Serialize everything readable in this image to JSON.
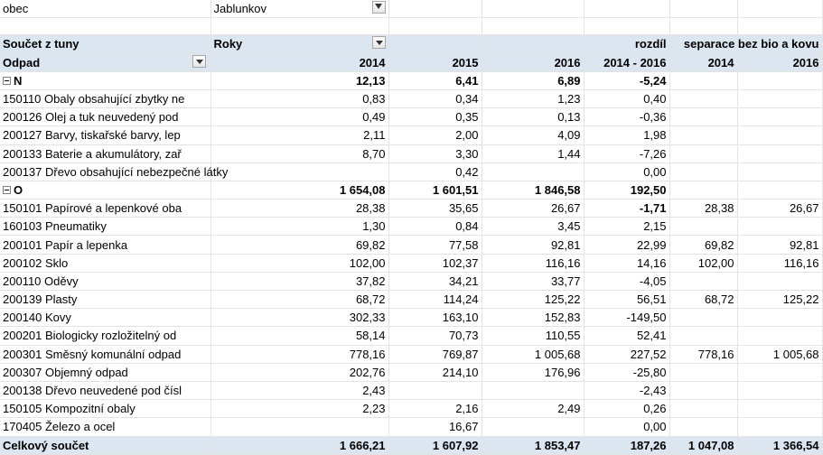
{
  "filter": {
    "label": "obec",
    "value": "Jablunkov"
  },
  "header": {
    "sum_label": "Součet z tuny",
    "years_label": "Roky",
    "diff_label": "rozdíl",
    "separation_label": "separace bez bio a kovu",
    "waste_label": "Odpad",
    "y2014": "2014",
    "y2015": "2015",
    "y2016": "2016",
    "diff_range": "2014 - 2016",
    "sep2014": "2014",
    "sep2016": "2016"
  },
  "groups": [
    {
      "name": "N",
      "totals": [
        "12,13",
        "6,41",
        "6,89",
        "-5,24",
        "",
        ""
      ],
      "rows": [
        [
          "150110 Obaly obsahující zbytky ne",
          "0,83",
          "0,34",
          "1,23",
          "0,40",
          "",
          ""
        ],
        [
          "200126 Olej a tuk neuvedený pod",
          "0,49",
          "0,35",
          "0,13",
          "-0,36",
          "",
          ""
        ],
        [
          "200127 Barvy, tiskařské barvy, lep",
          "2,11",
          "2,00",
          "4,09",
          "1,98",
          "",
          ""
        ],
        [
          "200133 Baterie a akumulátory, zař",
          "8,70",
          "3,30",
          "1,44",
          "-7,26",
          "",
          ""
        ],
        [
          "200137 Dřevo obsahující  nebezpečné látky",
          "",
          "0,42",
          "",
          "0,00",
          "",
          ""
        ]
      ]
    },
    {
      "name": "O",
      "totals": [
        "1 654,08",
        "1 601,51",
        "1 846,58",
        "192,50",
        "",
        ""
      ],
      "rows": [
        [
          "150101 Papírové a lepenkové oba",
          "28,38",
          "35,65",
          "26,67",
          "-1,71",
          "28,38",
          "26,67"
        ],
        [
          "160103 Pneumatiky",
          "1,30",
          "0,84",
          "3,45",
          "2,15",
          "",
          ""
        ],
        [
          "200101 Papír a lepenka",
          "69,82",
          "77,58",
          "92,81",
          "22,99",
          "69,82",
          "92,81"
        ],
        [
          "200102 Sklo",
          "102,00",
          "102,37",
          "116,16",
          "14,16",
          "102,00",
          "116,16"
        ],
        [
          "200110 Oděvy",
          "37,82",
          "34,21",
          "33,77",
          "-4,05",
          "",
          ""
        ],
        [
          "200139 Plasty",
          "68,72",
          "114,24",
          "125,22",
          "56,51",
          "68,72",
          "125,22"
        ],
        [
          "200140 Kovy",
          "302,33",
          "163,10",
          "152,83",
          "-149,50",
          "",
          ""
        ],
        [
          "200201 Biologicky rozložitelný od",
          "58,14",
          "70,73",
          "110,55",
          "52,41",
          "",
          ""
        ],
        [
          "200301 Směsný komunální odpad",
          "778,16",
          "769,87",
          "1 005,68",
          "227,52",
          "778,16",
          "1 005,68"
        ],
        [
          "200307 Objemný odpad",
          "202,76",
          "214,10",
          "176,96",
          "-25,80",
          "",
          ""
        ],
        [
          "200138 Dřevo neuvedené pod čísl",
          "2,43",
          "",
          "",
          "-2,43",
          "",
          ""
        ],
        [
          "150105 Kompozitní obaly",
          "2,23",
          "2,16",
          "2,49",
          "0,26",
          "",
          ""
        ],
        [
          "170405 Železo a ocel",
          "",
          "16,67",
          "",
          "0,00",
          "",
          ""
        ]
      ]
    }
  ],
  "grand_total": {
    "label": "Celkový součet",
    "values": [
      "1 666,21",
      "1 607,92",
      "1 853,47",
      "187,26",
      "1 047,08",
      "1 366,54"
    ]
  }
}
